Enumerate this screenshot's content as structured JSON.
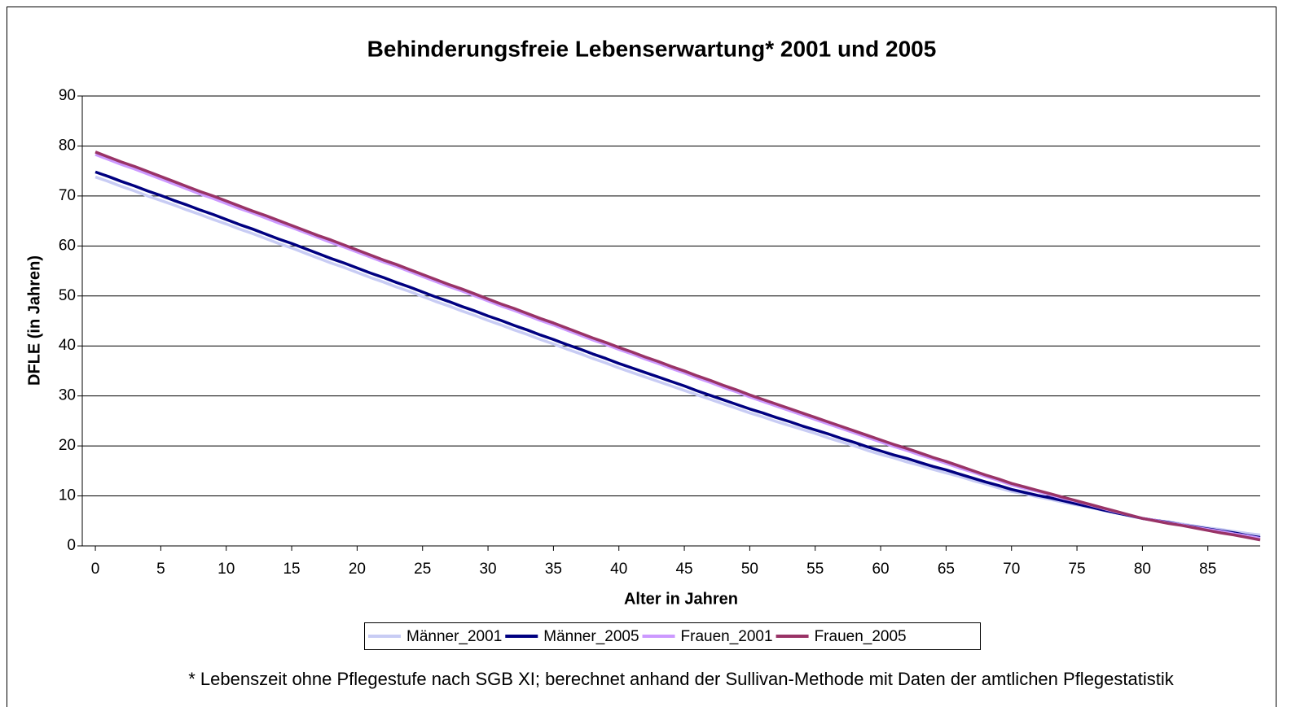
{
  "chart_data": {
    "type": "line",
    "title": "Behinderungsfreie Lebenserwartung* 2001 und 2005",
    "xlabel": "Alter in Jahren",
    "ylabel": "DFLE (in Jahren)",
    "footnote": "* Lebenszeit ohne Pflegestufe nach SGB XI; berechnet anhand der Sullivan-Methode mit Daten der amtlichen Pflegestatistik",
    "x": [
      0,
      1,
      2,
      3,
      4,
      5,
      6,
      7,
      8,
      9,
      10,
      11,
      12,
      13,
      14,
      15,
      16,
      17,
      18,
      19,
      20,
      21,
      22,
      23,
      24,
      25,
      26,
      27,
      28,
      29,
      30,
      31,
      32,
      33,
      34,
      35,
      36,
      37,
      38,
      39,
      40,
      41,
      42,
      43,
      44,
      45,
      46,
      47,
      48,
      49,
      50,
      51,
      52,
      53,
      54,
      55,
      56,
      57,
      58,
      59,
      60,
      61,
      62,
      63,
      64,
      65,
      66,
      67,
      68,
      69,
      70,
      71,
      72,
      73,
      74,
      75,
      76,
      77,
      78,
      79,
      80,
      81,
      82,
      83,
      84,
      85,
      86,
      87,
      88,
      89
    ],
    "xlim": [
      -1,
      89
    ],
    "xticks": [
      0,
      5,
      10,
      15,
      20,
      25,
      30,
      35,
      40,
      45,
      50,
      55,
      60,
      65,
      70,
      75,
      80,
      85
    ],
    "ylim": [
      0,
      90
    ],
    "yticks": [
      0,
      10,
      20,
      30,
      40,
      50,
      60,
      70,
      80,
      90
    ],
    "grid": true,
    "legend": "bottom",
    "series": [
      {
        "name": "Männer_2001",
        "color": "#c8ccf4",
        "values": [
          73.8,
          72.9,
          71.9,
          71.0,
          70.0,
          69.1,
          68.2,
          67.2,
          66.3,
          65.3,
          64.4,
          63.4,
          62.5,
          61.5,
          60.5,
          59.6,
          58.6,
          57.6,
          56.6,
          55.7,
          54.7,
          53.7,
          52.8,
          51.8,
          50.9,
          49.9,
          48.9,
          48.0,
          47.0,
          46.1,
          45.1,
          44.2,
          43.2,
          42.3,
          41.3,
          40.4,
          39.4,
          38.5,
          37.5,
          36.6,
          35.6,
          34.7,
          33.8,
          32.9,
          32.0,
          31.1,
          30.2,
          29.3,
          28.4,
          27.5,
          26.6,
          25.8,
          24.9,
          24.1,
          23.3,
          22.5,
          21.6,
          20.8,
          20.0,
          19.1,
          18.3,
          17.6,
          16.8,
          16.1,
          15.3,
          14.6,
          13.9,
          13.1,
          12.4,
          11.6,
          10.9,
          10.4,
          9.8,
          9.3,
          8.7,
          8.2,
          7.7,
          7.1,
          6.6,
          6.0,
          5.5,
          5.1,
          4.8,
          4.4,
          4.0,
          3.6,
          3.3,
          2.9,
          2.5,
          2.2
        ]
      },
      {
        "name": "Männer_2005",
        "color": "#000080",
        "values": [
          74.8,
          73.9,
          72.9,
          72.0,
          71.0,
          70.1,
          69.1,
          68.2,
          67.2,
          66.3,
          65.3,
          64.3,
          63.4,
          62.4,
          61.4,
          60.5,
          59.5,
          58.5,
          57.5,
          56.6,
          55.6,
          54.6,
          53.7,
          52.7,
          51.8,
          50.8,
          49.8,
          48.9,
          47.9,
          47.0,
          46.0,
          45.1,
          44.1,
          43.2,
          42.2,
          41.3,
          40.3,
          39.4,
          38.4,
          37.5,
          36.5,
          35.6,
          34.7,
          33.8,
          32.9,
          32.0,
          31.0,
          30.1,
          29.2,
          28.3,
          27.4,
          26.6,
          25.7,
          24.9,
          24.0,
          23.2,
          22.4,
          21.5,
          20.7,
          19.8,
          19.0,
          18.2,
          17.5,
          16.7,
          15.9,
          15.2,
          14.4,
          13.6,
          12.8,
          12.1,
          11.3,
          10.7,
          10.1,
          9.6,
          9.0,
          8.4,
          7.8,
          7.2,
          6.6,
          6.1,
          5.5,
          5.1,
          4.7,
          4.2,
          3.8,
          3.4,
          3.0,
          2.6,
          2.1,
          1.7
        ]
      },
      {
        "name": "Frauen_2001",
        "color": "#cc99ff",
        "values": [
          78.3,
          77.3,
          76.3,
          75.4,
          74.4,
          73.4,
          72.4,
          71.4,
          70.4,
          69.5,
          68.5,
          67.5,
          66.6,
          65.6,
          64.6,
          63.7,
          62.7,
          61.7,
          60.7,
          59.8,
          58.8,
          57.8,
          56.8,
          55.9,
          54.9,
          53.9,
          52.9,
          51.9,
          51.0,
          50.0,
          49.0,
          48.0,
          47.1,
          46.1,
          45.1,
          44.2,
          43.2,
          42.2,
          41.2,
          40.3,
          39.3,
          38.4,
          37.4,
          36.5,
          35.5,
          34.6,
          33.6,
          32.7,
          31.7,
          30.8,
          29.8,
          28.9,
          28.0,
          27.1,
          26.2,
          25.3,
          24.4,
          23.5,
          22.6,
          21.7,
          20.8,
          19.9,
          19.1,
          18.2,
          17.4,
          16.5,
          15.6,
          14.8,
          13.9,
          13.1,
          12.2,
          11.5,
          10.9,
          10.2,
          9.5,
          8.9,
          8.2,
          7.5,
          6.8,
          6.2,
          5.5,
          5.1,
          4.6,
          4.2,
          3.7,
          3.3,
          2.9,
          2.4,
          2.0,
          1.5
        ]
      },
      {
        "name": "Frauen_2005",
        "color": "#993366",
        "values": [
          78.8,
          77.8,
          76.8,
          75.9,
          74.9,
          73.9,
          72.9,
          71.9,
          70.9,
          70.0,
          69.0,
          68.0,
          67.0,
          66.1,
          65.1,
          64.1,
          63.1,
          62.1,
          61.2,
          60.2,
          59.2,
          58.2,
          57.2,
          56.3,
          55.3,
          54.3,
          53.3,
          52.3,
          51.4,
          50.4,
          49.4,
          48.4,
          47.5,
          46.5,
          45.5,
          44.6,
          43.6,
          42.6,
          41.6,
          40.7,
          39.7,
          38.8,
          37.8,
          36.9,
          35.9,
          35.0,
          34.0,
          33.1,
          32.1,
          31.2,
          30.2,
          29.3,
          28.4,
          27.5,
          26.6,
          25.7,
          24.8,
          23.9,
          23.0,
          22.1,
          21.2,
          20.3,
          19.5,
          18.6,
          17.7,
          16.9,
          16.0,
          15.1,
          14.2,
          13.4,
          12.5,
          11.8,
          11.1,
          10.4,
          9.7,
          9.0,
          8.3,
          7.6,
          6.9,
          6.2,
          5.5,
          5.0,
          4.5,
          4.1,
          3.6,
          3.1,
          2.6,
          2.2,
          1.7,
          1.2
        ]
      }
    ]
  }
}
